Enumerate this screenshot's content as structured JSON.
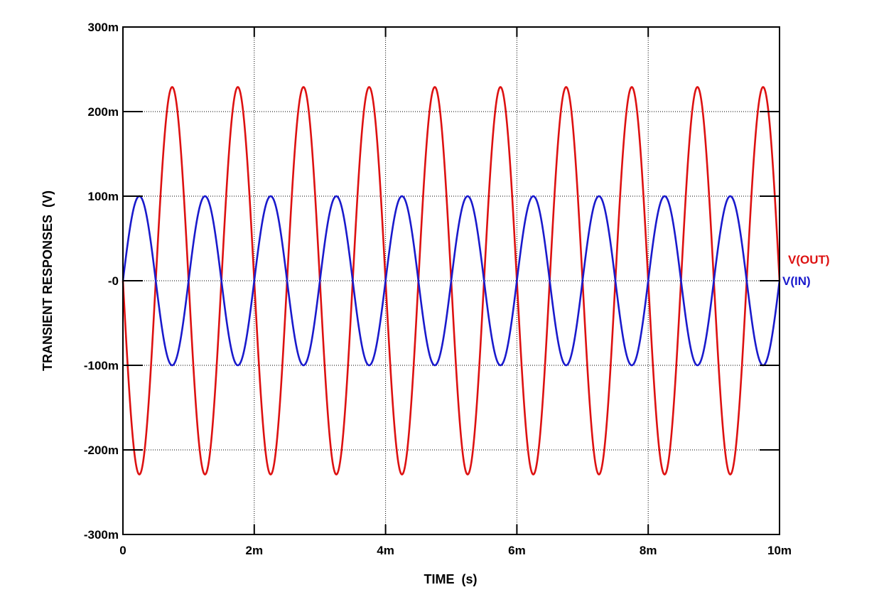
{
  "chart_data": {
    "type": "line",
    "xlabel": "TIME  (s)",
    "ylabel": "TRANSIENT RESPONSES  (V)",
    "xlim": [
      0,
      0.01
    ],
    "ylim": [
      -0.3,
      0.3
    ],
    "x_ticks": [
      {
        "value": 0,
        "label": "0"
      },
      {
        "value": 0.002,
        "label": "2m"
      },
      {
        "value": 0.004,
        "label": "4m"
      },
      {
        "value": 0.006,
        "label": "6m"
      },
      {
        "value": 0.008,
        "label": "8m"
      },
      {
        "value": 0.01,
        "label": "10m"
      }
    ],
    "y_ticks": [
      {
        "value": 0.3,
        "label": "300m"
      },
      {
        "value": 0.2,
        "label": "200m"
      },
      {
        "value": 0.1,
        "label": "100m"
      },
      {
        "value": 0,
        "label": "-0"
      },
      {
        "value": -0.1,
        "label": "-100m"
      },
      {
        "value": -0.2,
        "label": "-200m"
      },
      {
        "value": -0.3,
        "label": "-300m"
      }
    ],
    "grid": true,
    "legend_placement": "right",
    "series": [
      {
        "name": "V(OUT)",
        "color": "#dd1111",
        "shape": "sine",
        "amplitude": -0.229,
        "frequency_hz": 1000,
        "x": [
          0,
          0.00025,
          0.0005,
          0.00075,
          0.001,
          0.00125,
          0.0015,
          0.00175,
          0.002,
          0.00225,
          0.0025,
          0.00275,
          0.003,
          0.00325,
          0.0035,
          0.00375,
          0.004,
          0.00425,
          0.0045,
          0.00475,
          0.005,
          0.00525,
          0.0055,
          0.00575,
          0.006,
          0.00625,
          0.0065,
          0.00675,
          0.007,
          0.00725,
          0.0075,
          0.00775,
          0.008,
          0.00825,
          0.0085,
          0.00875,
          0.009,
          0.00925,
          0.0095,
          0.00975,
          0.01
        ],
        "y": [
          0,
          -0.229,
          0,
          0.229,
          0,
          -0.229,
          0,
          0.229,
          0,
          -0.229,
          0,
          0.229,
          0,
          -0.229,
          0,
          0.229,
          0,
          -0.229,
          0,
          0.229,
          0,
          -0.229,
          0,
          0.229,
          0,
          -0.229,
          0,
          0.229,
          0,
          -0.229,
          0,
          0.229,
          0,
          -0.229,
          0,
          0.229,
          0,
          -0.229,
          0,
          0.229,
          0
        ]
      },
      {
        "name": "V(IN)",
        "color": "#1a1acc",
        "shape": "sine",
        "amplitude": 0.1,
        "frequency_hz": 1000,
        "x": [
          0,
          0.00025,
          0.0005,
          0.00075,
          0.001,
          0.00125,
          0.0015,
          0.00175,
          0.002,
          0.00225,
          0.0025,
          0.00275,
          0.003,
          0.00325,
          0.0035,
          0.00375,
          0.004,
          0.00425,
          0.0045,
          0.00475,
          0.005,
          0.00525,
          0.0055,
          0.00575,
          0.006,
          0.00625,
          0.0065,
          0.00675,
          0.007,
          0.00725,
          0.0075,
          0.00775,
          0.008,
          0.00825,
          0.0085,
          0.00875,
          0.009,
          0.00925,
          0.0095,
          0.00975,
          0.01
        ],
        "y": [
          0,
          0.1,
          0,
          -0.1,
          0,
          0.1,
          0,
          -0.1,
          0,
          0.1,
          0,
          -0.1,
          0,
          0.1,
          0,
          -0.1,
          0,
          0.1,
          0,
          -0.1,
          0,
          0.1,
          0,
          -0.1,
          0,
          0.1,
          0,
          -0.1,
          0,
          0.1,
          0,
          -0.1,
          0,
          0.1,
          0,
          -0.1,
          0,
          0.1,
          0,
          -0.1,
          0
        ]
      }
    ]
  }
}
